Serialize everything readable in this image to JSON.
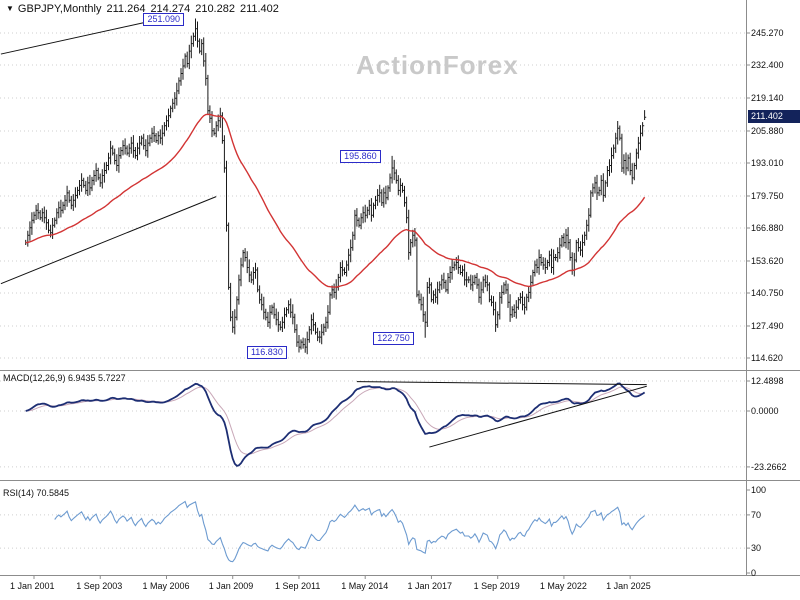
{
  "watermark": "ActionForex",
  "title_bar": {
    "dropdown_icon": "▼",
    "symbol_period": "GBPJPY,Monthly",
    "ohlc": {
      "open": "211.264",
      "high": "214.274",
      "low": "210.282",
      "close": "211.402"
    }
  },
  "colors": {
    "bar": "#1a1a1a",
    "ema": "#d23434",
    "macd_main": "#1d2e73",
    "macd_signal": "#c9a8b8",
    "rsi": "#6d9bd0",
    "annotation": "#2b2bc8",
    "badge_bg": "#13235b",
    "grid": "#cfcfcf",
    "separator": "#8c8c8c",
    "trendline": "#111111",
    "watermark": "#c9c9c9"
  },
  "main_panel": {
    "price_axis_labels": [
      "245.270",
      "232.400",
      "219.140",
      "205.880",
      "193.010",
      "179.750",
      "166.880",
      "153.620",
      "140.750",
      "127.490",
      "114.620"
    ],
    "current_price_label": "211.402"
  },
  "macd_panel": {
    "label": "MACD(12,26,9) 6.9435 5.7227",
    "axis_labels": [
      "12.4898",
      "0.0000",
      "-23.2662"
    ],
    "axis_values": [
      12.4898,
      0,
      -23.2662
    ]
  },
  "rsi_panel": {
    "label": "RSI(14) 70.5845",
    "axis_labels": [
      "100",
      "70",
      "30",
      "0"
    ],
    "axis_values": [
      100,
      70,
      30,
      0
    ]
  },
  "time_axis": {
    "labels": [
      "1 Jan 2001",
      "1 Sep 2003",
      "1 May 2006",
      "1 Jan 2009",
      "1 Sep 2011",
      "1 May 2014",
      "1 Jan 2017",
      "1 Sep 2019",
      "1 May 2022",
      "1 Jan 2025"
    ],
    "label_month_indices": [
      4,
      36,
      68,
      100,
      132,
      164,
      196,
      228,
      260,
      292
    ]
  },
  "chart_data": {
    "type": "ohlc-bar-chart-with-indicators",
    "symbol": "GBPJPY",
    "timeframe": "Monthly",
    "start_month": "2000-09",
    "price_range": [
      114.62,
      245.27
    ],
    "price_axis_ticks": [
      245.27,
      232.4,
      219.14,
      205.88,
      193.01,
      179.75,
      166.88,
      153.62,
      140.75,
      127.49,
      114.62
    ],
    "closes": [
      161,
      164,
      167,
      170,
      172,
      174,
      173,
      171,
      173,
      171,
      169,
      166,
      165,
      168,
      170,
      173,
      175,
      174,
      176,
      178,
      181,
      178,
      176,
      178,
      180,
      182,
      184,
      186,
      184,
      182,
      185,
      183,
      186,
      188,
      190,
      187,
      185,
      188,
      190,
      192,
      195,
      199,
      197,
      194,
      192,
      196,
      198,
      200,
      199,
      197,
      199,
      201,
      198,
      196,
      199,
      201,
      203,
      200,
      198,
      201,
      203,
      205,
      204,
      202,
      204,
      203,
      205,
      208,
      210,
      212,
      215,
      217,
      219,
      222,
      226,
      229,
      232,
      236,
      233,
      238,
      241,
      244,
      247,
      242,
      238,
      241,
      234,
      227,
      214,
      211,
      206,
      205,
      208,
      210,
      212,
      202,
      191,
      168,
      143,
      131,
      127,
      131,
      138,
      146,
      152,
      157,
      155,
      151,
      148,
      146,
      149,
      150,
      142,
      138,
      136,
      133,
      131,
      129,
      133,
      135,
      132,
      130,
      128,
      127,
      129,
      132,
      134,
      136,
      133,
      131,
      126,
      121,
      119,
      121,
      120,
      119,
      122,
      126,
      130,
      128,
      125,
      123,
      123,
      125,
      127,
      129,
      133,
      140,
      142,
      141,
      143,
      147,
      151,
      150,
      149,
      152,
      156,
      159,
      164,
      172,
      170,
      168,
      171,
      173,
      172,
      174,
      176,
      172,
      176,
      178,
      180,
      181,
      177,
      181,
      179,
      183,
      187,
      191,
      189,
      186,
      182,
      184,
      182,
      177,
      171,
      157,
      161,
      164,
      162,
      140,
      138,
      136,
      132,
      129,
      143,
      144,
      138,
      140,
      139,
      142,
      144,
      146,
      145,
      142,
      147,
      149,
      151,
      152,
      153,
      151,
      149,
      150,
      146,
      146,
      146,
      144,
      145,
      147,
      144,
      139,
      142,
      146,
      145,
      144,
      138,
      137,
      134,
      128,
      132,
      139,
      141,
      144,
      142,
      137,
      132,
      134,
      133,
      135,
      138,
      139,
      136,
      135,
      139,
      141,
      145,
      149,
      152,
      151,
      155,
      153,
      152,
      151,
      153,
      156,
      151,
      155,
      155,
      157,
      160,
      163,
      161,
      164,
      161,
      155,
      150,
      154,
      161,
      159,
      158,
      161,
      164,
      168,
      172,
      181,
      183,
      185,
      181,
      182,
      186,
      180,
      185,
      190,
      192,
      196,
      199,
      203,
      207,
      203,
      191,
      194,
      191,
      195,
      190,
      187,
      192,
      197,
      201,
      205,
      208,
      211.402
    ],
    "key_points": [
      {
        "label": "251.090",
        "price": 251.09,
        "month": "2007-07",
        "month_index": 82,
        "kind": "high"
      },
      {
        "label": "195.860",
        "price": 195.86,
        "month": "2015-06",
        "month_index": 177,
        "kind": "high"
      },
      {
        "label": "116.830",
        "price": 116.83,
        "month": "2011-09",
        "month_index": 132,
        "kind": "low"
      },
      {
        "label": "122.750",
        "price": 122.75,
        "month": "2016-10",
        "month_index": 193,
        "kind": "low"
      }
    ],
    "last_bar": {
      "open": 211.264,
      "high": 214.274,
      "low": 210.282,
      "close": 211.402
    },
    "overlays": {
      "ema_period": 55,
      "macd_params": [
        12,
        26,
        9
      ],
      "macd_current": [
        6.9435,
        5.7227
      ],
      "rsi_period": 14,
      "rsi_current": 70.5845,
      "trendlines_price": [
        {
          "from": [
            -12,
            236.8
          ],
          "to": [
            70,
            251.8
          ]
        },
        {
          "from": [
            -12,
            144.5
          ],
          "to": [
            92,
            179.5
          ]
        }
      ],
      "trendlines_macd": [
        {
          "from": [
            160,
            12.2
          ],
          "to": [
            300,
            11.0
          ]
        },
        {
          "from": [
            195,
            -15.0
          ],
          "to": [
            300,
            10.3
          ]
        }
      ]
    }
  }
}
